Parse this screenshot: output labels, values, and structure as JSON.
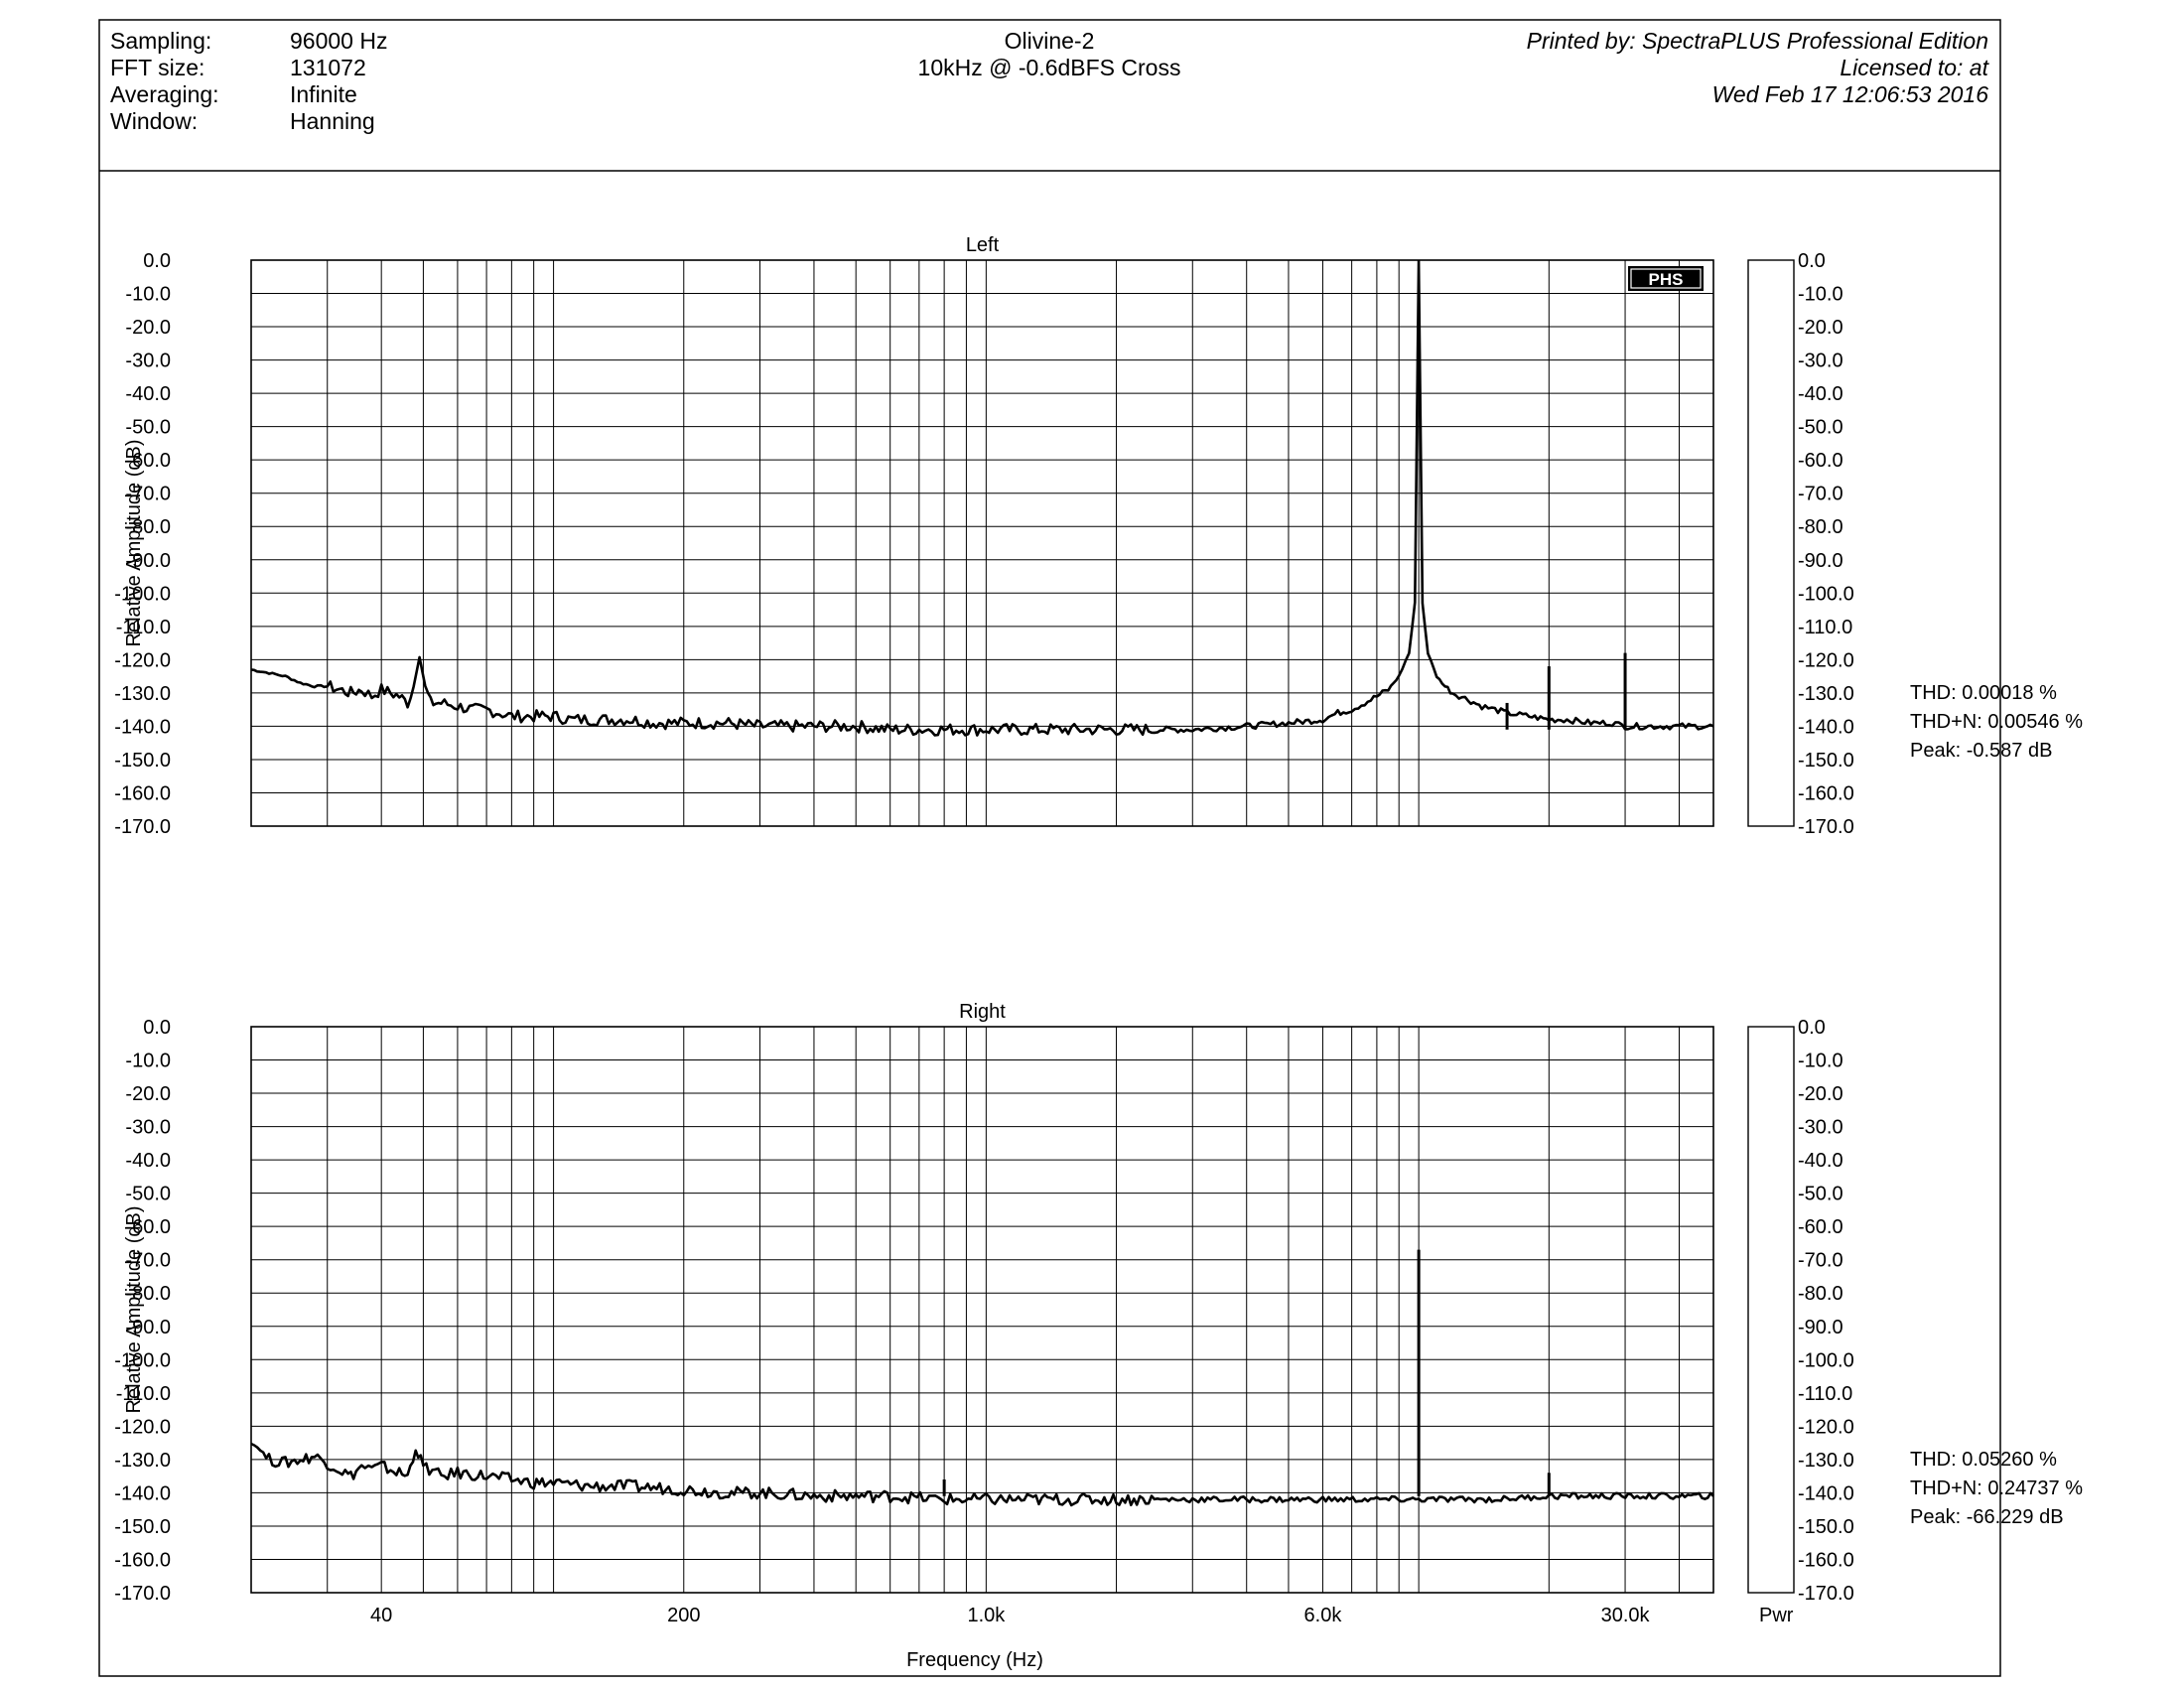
{
  "header": {
    "left_rows": [
      {
        "label": "Sampling:",
        "value": "96000 Hz"
      },
      {
        "label": "FFT size:",
        "value": "131072"
      },
      {
        "label": "Averaging:",
        "value": "Infinite"
      },
      {
        "label": "Window:",
        "value": "Hanning"
      }
    ],
    "center_lines": [
      "Olivine-2",
      "10kHz @ -0.6dBFS Cross"
    ],
    "right_lines": [
      "Printed by: SpectraPLUS Professional Edition",
      "Licensed to: at",
      "Wed Feb 17 12:06:53 2016"
    ]
  },
  "logo_text": "PHS",
  "pwr_label": "Pwr",
  "chart_data": [
    {
      "type": "line",
      "title": "Left",
      "xlabel": "Frequency (Hz)",
      "ylabel": "Relative Amplitude (dB)",
      "xscale": "log",
      "xlim": [
        20,
        48000
      ],
      "ylim": [
        -170,
        0
      ],
      "grid": true,
      "y_ticks": [
        "0.0",
        "-10.0",
        "-20.0",
        "-30.0",
        "-40.0",
        "-50.0",
        "-60.0",
        "-70.0",
        "-80.0",
        "-90.0",
        "-100.0",
        "-110.0",
        "-120.0",
        "-130.0",
        "-140.0",
        "-150.0",
        "-160.0",
        "-170.0"
      ],
      "x_ticks": [
        {
          "v": 40,
          "label": "40"
        },
        {
          "v": 200,
          "label": "200"
        },
        {
          "v": 1000,
          "label": "1.0k"
        },
        {
          "v": 6000,
          "label": "6.0k"
        },
        {
          "v": 30000,
          "label": "30.0k"
        }
      ],
      "series": [
        {
          "points": [
            [
              20,
              -123
            ],
            [
              22,
              -124
            ],
            [
              24,
              -125
            ],
            [
              26,
              -127
            ],
            [
              28,
              -128
            ],
            [
              30,
              -128
            ],
            [
              32,
              -129
            ],
            [
              34,
              -130
            ],
            [
              36,
              -129
            ],
            [
              38,
              -131
            ],
            [
              40,
              -129
            ],
            [
              42,
              -130
            ],
            [
              44,
              -131
            ],
            [
              46,
              -133
            ],
            [
              47.5,
              -128
            ],
            [
              49,
              -119
            ],
            [
              50.5,
              -128
            ],
            [
              52,
              -133
            ],
            [
              55,
              -133
            ],
            [
              60,
              -134
            ],
            [
              65,
              -135
            ],
            [
              70,
              -135
            ],
            [
              75,
              -136
            ],
            [
              80,
              -137
            ],
            [
              90,
              -137
            ],
            [
              100,
              -137
            ],
            [
              110,
              -138
            ],
            [
              120,
              -138
            ],
            [
              130,
              -138
            ],
            [
              150,
              -138
            ],
            [
              170,
              -139
            ],
            [
              200,
              -139
            ],
            [
              250,
              -139
            ],
            [
              300,
              -140
            ],
            [
              400,
              -140
            ],
            [
              500,
              -140
            ],
            [
              600,
              -141
            ],
            [
              700,
              -141
            ],
            [
              800,
              -141
            ],
            [
              1000,
              -141
            ],
            [
              1500,
              -141
            ],
            [
              2000,
              -141
            ],
            [
              3000,
              -141
            ],
            [
              4000,
              -140
            ],
            [
              5000,
              -139
            ],
            [
              6000,
              -138
            ],
            [
              6500,
              -136
            ],
            [
              7000,
              -135
            ],
            [
              7500,
              -133
            ],
            [
              8000,
              -131
            ],
            [
              8500,
              -129
            ],
            [
              9000,
              -125
            ],
            [
              9500,
              -118
            ],
            [
              9800,
              -103
            ],
            [
              10000,
              0
            ],
            [
              10200,
              -103
            ],
            [
              10500,
              -118
            ],
            [
              11000,
              -125
            ],
            [
              11500,
              -128
            ],
            [
              12000,
              -130
            ],
            [
              13000,
              -132
            ],
            [
              14000,
              -134
            ],
            [
              15000,
              -135
            ],
            [
              16000,
              -136
            ],
            [
              18000,
              -137
            ],
            [
              20000,
              -138
            ],
            [
              22000,
              -138
            ],
            [
              25000,
              -139
            ],
            [
              28000,
              -139
            ],
            [
              30000,
              -140
            ],
            [
              35000,
              -140
            ],
            [
              40000,
              -140
            ],
            [
              45000,
              -140
            ],
            [
              48000,
              -140
            ]
          ],
          "spikes": [
            [
              20000,
              -122
            ],
            [
              30000,
              -118
            ],
            [
              16000,
              -133
            ]
          ]
        }
      ],
      "stats": [
        "THD: 0.00018 %",
        "THD+N: 0.00546 %",
        "Peak: -0.587 dB"
      ]
    },
    {
      "type": "line",
      "title": "Right",
      "xlabel": "Frequency (Hz)",
      "ylabel": "Relative Amplitude (dB)",
      "xscale": "log",
      "xlim": [
        20,
        48000
      ],
      "ylim": [
        -170,
        0
      ],
      "grid": true,
      "y_ticks": [
        "0.0",
        "-10.0",
        "-20.0",
        "-30.0",
        "-40.0",
        "-50.0",
        "-60.0",
        "-70.0",
        "-80.0",
        "-90.0",
        "-100.0",
        "-110.0",
        "-120.0",
        "-130.0",
        "-140.0",
        "-150.0",
        "-160.0",
        "-170.0"
      ],
      "x_ticks": [
        {
          "v": 40,
          "label": "40"
        },
        {
          "v": 200,
          "label": "200"
        },
        {
          "v": 1000,
          "label": "1.0k"
        },
        {
          "v": 6000,
          "label": "6.0k"
        },
        {
          "v": 30000,
          "label": "30.0k"
        }
      ],
      "series": [
        {
          "points": [
            [
              20,
              -125
            ],
            [
              21,
              -127
            ],
            [
              22,
              -130
            ],
            [
              24,
              -131
            ],
            [
              26,
              -130
            ],
            [
              28,
              -129
            ],
            [
              30,
              -131
            ],
            [
              32,
              -133
            ],
            [
              34,
              -135
            ],
            [
              36,
              -132
            ],
            [
              38,
              -133
            ],
            [
              40,
              -132
            ],
            [
              42,
              -133
            ],
            [
              44,
              -134
            ],
            [
              46,
              -135
            ],
            [
              48,
              -127
            ],
            [
              50,
              -132
            ],
            [
              55,
              -135
            ],
            [
              60,
              -134
            ],
            [
              70,
              -135
            ],
            [
              80,
              -136
            ],
            [
              90,
              -137
            ],
            [
              100,
              -137
            ],
            [
              120,
              -138
            ],
            [
              150,
              -138
            ],
            [
              200,
              -139
            ],
            [
              250,
              -140
            ],
            [
              300,
              -140
            ],
            [
              400,
              -141
            ],
            [
              500,
              -141
            ],
            [
              600,
              -141
            ],
            [
              800,
              -142
            ],
            [
              1000,
              -142
            ],
            [
              1500,
              -142
            ],
            [
              2000,
              -142
            ],
            [
              3000,
              -142
            ],
            [
              4000,
              -142
            ],
            [
              5000,
              -142
            ],
            [
              6000,
              -142
            ],
            [
              8000,
              -142
            ],
            [
              10000,
              -142
            ],
            [
              15000,
              -142
            ],
            [
              20000,
              -141
            ],
            [
              30000,
              -141
            ],
            [
              40000,
              -141
            ],
            [
              48000,
              -141
            ]
          ],
          "spikes": [
            [
              10000,
              -67
            ],
            [
              20000,
              -134
            ],
            [
              800,
              -136
            ]
          ]
        }
      ],
      "stats": [
        "THD: 0.05260 %",
        "THD+N: 0.24737 %",
        "Peak: -66.229 dB"
      ]
    }
  ]
}
